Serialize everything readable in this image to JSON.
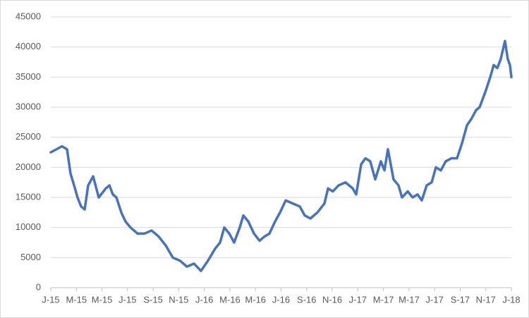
{
  "chart_data": {
    "type": "line",
    "x": [
      0,
      0.44,
      0.88,
      1.27,
      1.54,
      1.82,
      2.09,
      2.37,
      2.65,
      2.92,
      3.31,
      3.75,
      4.3,
      4.58,
      4.85,
      5.13,
      5.51,
      5.84,
      6.23,
      6.78,
      7.33,
      7.88,
      8.43,
      8.99,
      9.54,
      10.09,
      10.64,
      11.19,
      11.74,
      12.29,
      12.85,
      13.23,
      13.56,
      13.95,
      14.33,
      14.77,
      15.05,
      15.44,
      15.88,
      16.32,
      16.7,
      17.09,
      17.53,
      17.92,
      18.36,
      18.91,
      19.46,
      19.85,
      20.29,
      20.84,
      21.39,
      21.67,
      22.05,
      22.49,
      23.04,
      23.6,
      23.87,
      24.26,
      24.59,
      24.97,
      25.36,
      25.8,
      26.08,
      26.35,
      26.79,
      27.18,
      27.45,
      27.9,
      28.28,
      28.67,
      29.0,
      29.38,
      29.77,
      30.1,
      30.49,
      30.87,
      31.31,
      31.75,
      32.14,
      32.53,
      32.86,
      33.24,
      33.52,
      33.96,
      34.35,
      34.62,
      34.9,
      35.17,
      35.5,
      35.72,
      35.89,
      36
    ],
    "series": [
      {
        "color": "#4472c4",
        "values": [
          22500,
          23000,
          23500,
          23000,
          19000,
          17000,
          15000,
          13500,
          13000,
          17000,
          18500,
          15000,
          16500,
          17000,
          15500,
          15000,
          12500,
          11000,
          10000,
          9000,
          9000,
          9500,
          8500,
          7000,
          5000,
          4500,
          3500,
          4000,
          2800,
          4500,
          6500,
          7500,
          10000,
          9000,
          7500,
          10000,
          12000,
          11000,
          9000,
          7800,
          8500,
          9000,
          11000,
          12500,
          14500,
          14000,
          13500,
          12000,
          11500,
          12500,
          14000,
          16500,
          16000,
          17000,
          17500,
          16500,
          15500,
          20500,
          21500,
          21000,
          18000,
          21000,
          19500,
          23000,
          18000,
          17000,
          15000,
          16000,
          15000,
          15500,
          14500,
          17000,
          17500,
          20000,
          19500,
          21000,
          21500,
          21500,
          24000,
          27000,
          28000,
          29500,
          30000,
          32500,
          35000,
          37000,
          36500,
          38000,
          41000,
          38000,
          37000,
          35000
        ]
      }
    ],
    "xlim": [
      0,
      36
    ],
    "xticks": [
      {
        "value": 0,
        "label": "J-15"
      },
      {
        "value": 2,
        "label": "M-15"
      },
      {
        "value": 4,
        "label": "M-15"
      },
      {
        "value": 6,
        "label": "J-15"
      },
      {
        "value": 8,
        "label": "S-15"
      },
      {
        "value": 10,
        "label": "N-15"
      },
      {
        "value": 12,
        "label": "J-16"
      },
      {
        "value": 14,
        "label": "M-16"
      },
      {
        "value": 16,
        "label": "M-16"
      },
      {
        "value": 18,
        "label": "J-16"
      },
      {
        "value": 20,
        "label": "S-16"
      },
      {
        "value": 22,
        "label": "N-16"
      },
      {
        "value": 24,
        "label": "J-17"
      },
      {
        "value": 26,
        "label": "M-17"
      },
      {
        "value": 28,
        "label": "M-17"
      },
      {
        "value": 30,
        "label": "J-17"
      },
      {
        "value": 32,
        "label": "S-17"
      },
      {
        "value": 34,
        "label": "N-17"
      },
      {
        "value": 36,
        "label": "J-18"
      }
    ],
    "ylim": [
      0,
      45000
    ],
    "yticks": [
      0,
      5000,
      10000,
      15000,
      20000,
      25000,
      30000,
      35000,
      40000,
      45000
    ],
    "grid": true
  }
}
